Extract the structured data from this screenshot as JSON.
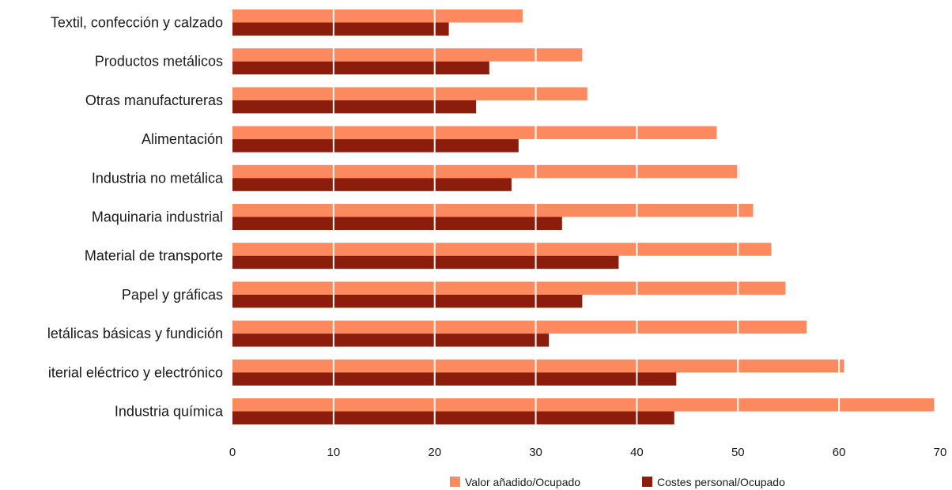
{
  "chart_data": {
    "type": "bar",
    "orientation": "horizontal",
    "categories": [
      "Textil, confección y calzado",
      "Productos metálicos",
      "Otras manufactureras",
      "Alimentación",
      "Industria no metálica",
      "Maquinaria industrial",
      "Material de transporte",
      "Papel y gráficas",
      "letálicas básicas y fundición",
      "iterial eléctrico y electrónico",
      "Industria química"
    ],
    "series": [
      {
        "name": "Valor añadido/Ocupado",
        "color": "#fd8a5e",
        "values": [
          28.7,
          34.6,
          35.1,
          47.9,
          50.1,
          51.5,
          53.3,
          54.7,
          56.8,
          60.5,
          69.4
        ]
      },
      {
        "name": "Costes personal/Ocupado",
        "color": "#8c1c0c",
        "values": [
          21.4,
          25.4,
          24.1,
          28.3,
          27.6,
          32.6,
          38.2,
          34.6,
          31.3,
          43.9,
          43.7
        ]
      }
    ],
    "xlim": [
      0,
      70
    ],
    "xticks": [
      "0",
      "10",
      "20",
      "30",
      "40",
      "50",
      "60",
      "70"
    ],
    "gridlines": "vertical white lines at each tick drawn over bars",
    "legend_position": "bottom-center",
    "title": "",
    "xlabel": "",
    "ylabel": ""
  }
}
